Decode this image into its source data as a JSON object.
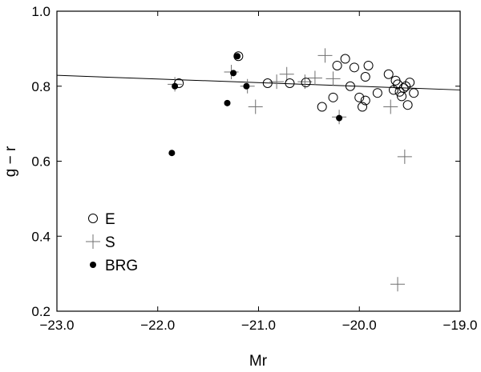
{
  "chart_data": {
    "type": "scatter",
    "title": "",
    "xlabel": "Mr",
    "ylabel": "g − r",
    "xlim": [
      -23.0,
      -19.0
    ],
    "ylim": [
      0.2,
      1.0
    ],
    "x_ticks": [
      -23.0,
      -22.0,
      -21.0,
      -20.0,
      -19.0
    ],
    "x_tick_labels": [
      "−23.0",
      "−22.0",
      "−21.0",
      "−20.0",
      "−19.0"
    ],
    "y_ticks": [
      0.2,
      0.4,
      0.6,
      0.8,
      1.0
    ],
    "y_tick_labels": [
      "0.2",
      "0.4",
      "0.6",
      "0.8",
      "1.0"
    ],
    "grid": false,
    "legend_position": "lower-left",
    "fit_line": {
      "x": [
        -23.0,
        -19.0
      ],
      "y": [
        0.829,
        0.79
      ]
    },
    "series": [
      {
        "name": "E",
        "marker": "open-circle",
        "color": "#000000",
        "points": [
          {
            "x": -21.79,
            "y": 0.808
          },
          {
            "x": -20.91,
            "y": 0.808
          },
          {
            "x": -20.69,
            "y": 0.808
          },
          {
            "x": -20.53,
            "y": 0.81
          },
          {
            "x": -20.37,
            "y": 0.745
          },
          {
            "x": -20.26,
            "y": 0.77
          },
          {
            "x": -20.22,
            "y": 0.855
          },
          {
            "x": -20.14,
            "y": 0.873
          },
          {
            "x": -20.09,
            "y": 0.8
          },
          {
            "x": -20.05,
            "y": 0.85
          },
          {
            "x": -20.0,
            "y": 0.77
          },
          {
            "x": -19.97,
            "y": 0.745
          },
          {
            "x": -19.94,
            "y": 0.825
          },
          {
            "x": -19.94,
            "y": 0.762
          },
          {
            "x": -19.91,
            "y": 0.855
          },
          {
            "x": -19.82,
            "y": 0.782
          },
          {
            "x": -19.71,
            "y": 0.832
          },
          {
            "x": -19.66,
            "y": 0.79
          },
          {
            "x": -19.64,
            "y": 0.815
          },
          {
            "x": -19.62,
            "y": 0.805
          },
          {
            "x": -19.6,
            "y": 0.785
          },
          {
            "x": -19.58,
            "y": 0.773
          },
          {
            "x": -19.56,
            "y": 0.795
          },
          {
            "x": -19.54,
            "y": 0.8
          },
          {
            "x": -19.52,
            "y": 0.75
          },
          {
            "x": -19.5,
            "y": 0.81
          },
          {
            "x": -19.46,
            "y": 0.782
          },
          {
            "x": -21.2,
            "y": 0.88
          }
        ]
      },
      {
        "name": "S",
        "marker": "plus",
        "color": "#707070",
        "points": [
          {
            "x": -21.83,
            "y": 0.805
          },
          {
            "x": -21.27,
            "y": 0.838
          },
          {
            "x": -21.11,
            "y": 0.8
          },
          {
            "x": -21.03,
            "y": 0.745
          },
          {
            "x": -20.82,
            "y": 0.812
          },
          {
            "x": -20.72,
            "y": 0.832
          },
          {
            "x": -20.54,
            "y": 0.812
          },
          {
            "x": -20.44,
            "y": 0.822
          },
          {
            "x": -20.34,
            "y": 0.882
          },
          {
            "x": -20.26,
            "y": 0.82
          },
          {
            "x": -20.2,
            "y": 0.718
          },
          {
            "x": -19.69,
            "y": 0.745
          },
          {
            "x": -19.55,
            "y": 0.612
          },
          {
            "x": -19.62,
            "y": 0.272
          }
        ]
      },
      {
        "name": "BRG",
        "marker": "filled-circle",
        "color": "#000000",
        "points": [
          {
            "x": -21.86,
            "y": 0.622
          },
          {
            "x": -21.83,
            "y": 0.8
          },
          {
            "x": -21.31,
            "y": 0.755
          },
          {
            "x": -21.25,
            "y": 0.835
          },
          {
            "x": -21.21,
            "y": 0.88
          },
          {
            "x": -21.12,
            "y": 0.8
          },
          {
            "x": -20.2,
            "y": 0.715
          }
        ]
      }
    ]
  }
}
